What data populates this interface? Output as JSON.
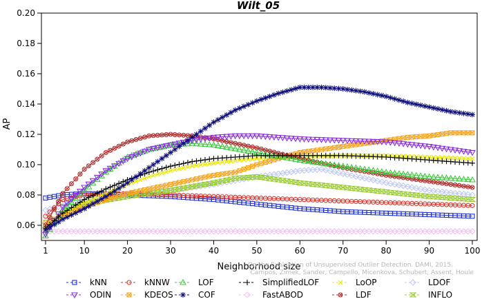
{
  "chart_data": {
    "type": "line",
    "title": "Wilt_05",
    "xlabel": "Neighborhood size",
    "ylabel": "AP",
    "xlim": [
      1,
      100
    ],
    "ylim": [
      0.05,
      0.2
    ],
    "x_ticks": [
      "1",
      "10",
      "20",
      "30",
      "40",
      "50",
      "60",
      "70",
      "80",
      "90",
      "100"
    ],
    "y_ticks": [
      "0.06",
      "0.08",
      "0.10",
      "0.12",
      "0.14",
      "0.16",
      "0.18",
      "0.20"
    ],
    "grid": false,
    "legend_position": "bottom",
    "series": [
      {
        "name": "kNN",
        "color": "#1f2fd0",
        "marker": "square",
        "points": [
          [
            1,
            0.078
          ],
          [
            5,
            0.08
          ],
          [
            10,
            0.081
          ],
          [
            20,
            0.08
          ],
          [
            30,
            0.079
          ],
          [
            40,
            0.077
          ],
          [
            50,
            0.074
          ],
          [
            60,
            0.071
          ],
          [
            70,
            0.069
          ],
          [
            80,
            0.068
          ],
          [
            90,
            0.067
          ],
          [
            100,
            0.066
          ]
        ]
      },
      {
        "name": "kNNW",
        "color": "#e0342a",
        "marker": "circle",
        "points": [
          [
            1,
            0.066
          ],
          [
            5,
            0.077
          ],
          [
            10,
            0.08
          ],
          [
            20,
            0.081
          ],
          [
            30,
            0.08
          ],
          [
            40,
            0.079
          ],
          [
            50,
            0.078
          ],
          [
            60,
            0.077
          ],
          [
            70,
            0.076
          ],
          [
            80,
            0.075
          ],
          [
            90,
            0.074
          ],
          [
            100,
            0.073
          ]
        ]
      },
      {
        "name": "LOF",
        "color": "#3ccc3c",
        "marker": "triangle",
        "points": [
          [
            1,
            0.053
          ],
          [
            5,
            0.07
          ],
          [
            10,
            0.083
          ],
          [
            15,
            0.095
          ],
          [
            20,
            0.105
          ],
          [
            25,
            0.11
          ],
          [
            30,
            0.113
          ],
          [
            35,
            0.114
          ],
          [
            40,
            0.113
          ],
          [
            50,
            0.108
          ],
          [
            60,
            0.103
          ],
          [
            70,
            0.099
          ],
          [
            80,
            0.095
          ],
          [
            90,
            0.092
          ],
          [
            100,
            0.09
          ]
        ]
      },
      {
        "name": "SimplifiedLOF",
        "color": "#000000",
        "marker": "plus",
        "points": [
          [
            1,
            0.058
          ],
          [
            5,
            0.068
          ],
          [
            10,
            0.077
          ],
          [
            15,
            0.084
          ],
          [
            20,
            0.09
          ],
          [
            25,
            0.095
          ],
          [
            30,
            0.099
          ],
          [
            35,
            0.102
          ],
          [
            40,
            0.104
          ],
          [
            50,
            0.106
          ],
          [
            60,
            0.106
          ],
          [
            70,
            0.106
          ],
          [
            80,
            0.105
          ],
          [
            90,
            0.103
          ],
          [
            100,
            0.101
          ]
        ]
      },
      {
        "name": "LoOP",
        "color": "#e8e800",
        "marker": "x",
        "points": [
          [
            1,
            0.058
          ],
          [
            5,
            0.067
          ],
          [
            10,
            0.075
          ],
          [
            15,
            0.081
          ],
          [
            20,
            0.087
          ],
          [
            25,
            0.092
          ],
          [
            30,
            0.096
          ],
          [
            35,
            0.099
          ],
          [
            40,
            0.101
          ],
          [
            50,
            0.104
          ],
          [
            60,
            0.105
          ],
          [
            70,
            0.106
          ],
          [
            80,
            0.106
          ],
          [
            90,
            0.105
          ],
          [
            100,
            0.104
          ]
        ]
      },
      {
        "name": "LDOF",
        "color": "#c0c8f0",
        "marker": "diamond",
        "points": [
          [
            1,
            0.07
          ],
          [
            5,
            0.073
          ],
          [
            10,
            0.076
          ],
          [
            20,
            0.08
          ],
          [
            30,
            0.083
          ],
          [
            40,
            0.087
          ],
          [
            50,
            0.092
          ],
          [
            60,
            0.096
          ],
          [
            65,
            0.097
          ],
          [
            70,
            0.094
          ],
          [
            80,
            0.088
          ],
          [
            90,
            0.083
          ],
          [
            100,
            0.08
          ]
        ]
      },
      {
        "name": "ODIN",
        "color": "#8a2be2",
        "marker": "triangle-down",
        "points": [
          [
            1,
            0.054
          ],
          [
            5,
            0.072
          ],
          [
            10,
            0.085
          ],
          [
            15,
            0.096
          ],
          [
            20,
            0.104
          ],
          [
            25,
            0.11
          ],
          [
            30,
            0.113
          ],
          [
            35,
            0.116
          ],
          [
            40,
            0.118
          ],
          [
            45,
            0.119
          ],
          [
            50,
            0.119
          ],
          [
            60,
            0.117
          ],
          [
            70,
            0.116
          ],
          [
            80,
            0.115
          ],
          [
            90,
            0.112
          ],
          [
            100,
            0.108
          ]
        ]
      },
      {
        "name": "KDEOS",
        "color": "#f5a623",
        "marker": "square-x",
        "points": [
          [
            1,
            0.062
          ],
          [
            5,
            0.066
          ],
          [
            10,
            0.072
          ],
          [
            15,
            0.077
          ],
          [
            20,
            0.081
          ],
          [
            25,
            0.084
          ],
          [
            30,
            0.087
          ],
          [
            35,
            0.09
          ],
          [
            40,
            0.093
          ],
          [
            45,
            0.095
          ],
          [
            50,
            0.1
          ],
          [
            55,
            0.104
          ],
          [
            60,
            0.108
          ],
          [
            65,
            0.11
          ],
          [
            70,
            0.112
          ],
          [
            75,
            0.114
          ],
          [
            80,
            0.116
          ],
          [
            85,
            0.118
          ],
          [
            90,
            0.119
          ],
          [
            95,
            0.121
          ],
          [
            100,
            0.121
          ]
        ]
      },
      {
        "name": "COF",
        "color": "#0d0d7a",
        "marker": "star",
        "points": [
          [
            1,
            0.057
          ],
          [
            5,
            0.064
          ],
          [
            10,
            0.071
          ],
          [
            15,
            0.079
          ],
          [
            20,
            0.088
          ],
          [
            25,
            0.098
          ],
          [
            30,
            0.108
          ],
          [
            35,
            0.118
          ],
          [
            40,
            0.128
          ],
          [
            45,
            0.136
          ],
          [
            50,
            0.142
          ],
          [
            55,
            0.147
          ],
          [
            60,
            0.151
          ],
          [
            65,
            0.151
          ],
          [
            70,
            0.15
          ],
          [
            75,
            0.148
          ],
          [
            80,
            0.145
          ],
          [
            85,
            0.141
          ],
          [
            90,
            0.138
          ],
          [
            95,
            0.135
          ],
          [
            100,
            0.133
          ]
        ]
      },
      {
        "name": "FastABOD",
        "color": "#f4c0f4",
        "marker": "diamond",
        "points": [
          [
            1,
            0.056
          ],
          [
            10,
            0.056
          ],
          [
            20,
            0.056
          ],
          [
            30,
            0.056
          ],
          [
            40,
            0.056
          ],
          [
            50,
            0.056
          ],
          [
            60,
            0.056
          ],
          [
            70,
            0.056
          ],
          [
            80,
            0.056
          ],
          [
            90,
            0.056
          ],
          [
            100,
            0.056
          ]
        ]
      },
      {
        "name": "LDF",
        "color": "#b03030",
        "marker": "circle-x",
        "points": [
          [
            1,
            0.06
          ],
          [
            5,
            0.081
          ],
          [
            10,
            0.097
          ],
          [
            15,
            0.108
          ],
          [
            20,
            0.115
          ],
          [
            25,
            0.119
          ],
          [
            30,
            0.12
          ],
          [
            35,
            0.119
          ],
          [
            40,
            0.117
          ],
          [
            50,
            0.111
          ],
          [
            60,
            0.104
          ],
          [
            70,
            0.098
          ],
          [
            80,
            0.093
          ],
          [
            90,
            0.089
          ],
          [
            100,
            0.085
          ]
        ]
      },
      {
        "name": "INFLO",
        "color": "#9acd32",
        "marker": "hourglass",
        "points": [
          [
            1,
            0.06
          ],
          [
            5,
            0.068
          ],
          [
            10,
            0.074
          ],
          [
            20,
            0.079
          ],
          [
            30,
            0.083
          ],
          [
            40,
            0.088
          ],
          [
            45,
            0.091
          ],
          [
            50,
            0.092
          ],
          [
            60,
            0.088
          ],
          [
            70,
            0.085
          ],
          [
            80,
            0.082
          ],
          [
            90,
            0.079
          ],
          [
            100,
            0.077
          ]
        ]
      }
    ],
    "legend_rows": [
      [
        "kNN",
        "kNNW",
        "LOF",
        "SimplifiedLOF",
        "LoOP",
        "LDOF"
      ],
      [
        "ODIN",
        "KDEOS",
        "COF",
        "FastABOD",
        "LDF",
        "INFLO"
      ]
    ],
    "watermark_lines": [
      "Campos, Zimek, Sander, Campello, Micenkova, Schubert, Assent, Houle",
      "On the Evaluation of Unsupervised Outlier Detection. DAMI, 2015."
    ]
  }
}
